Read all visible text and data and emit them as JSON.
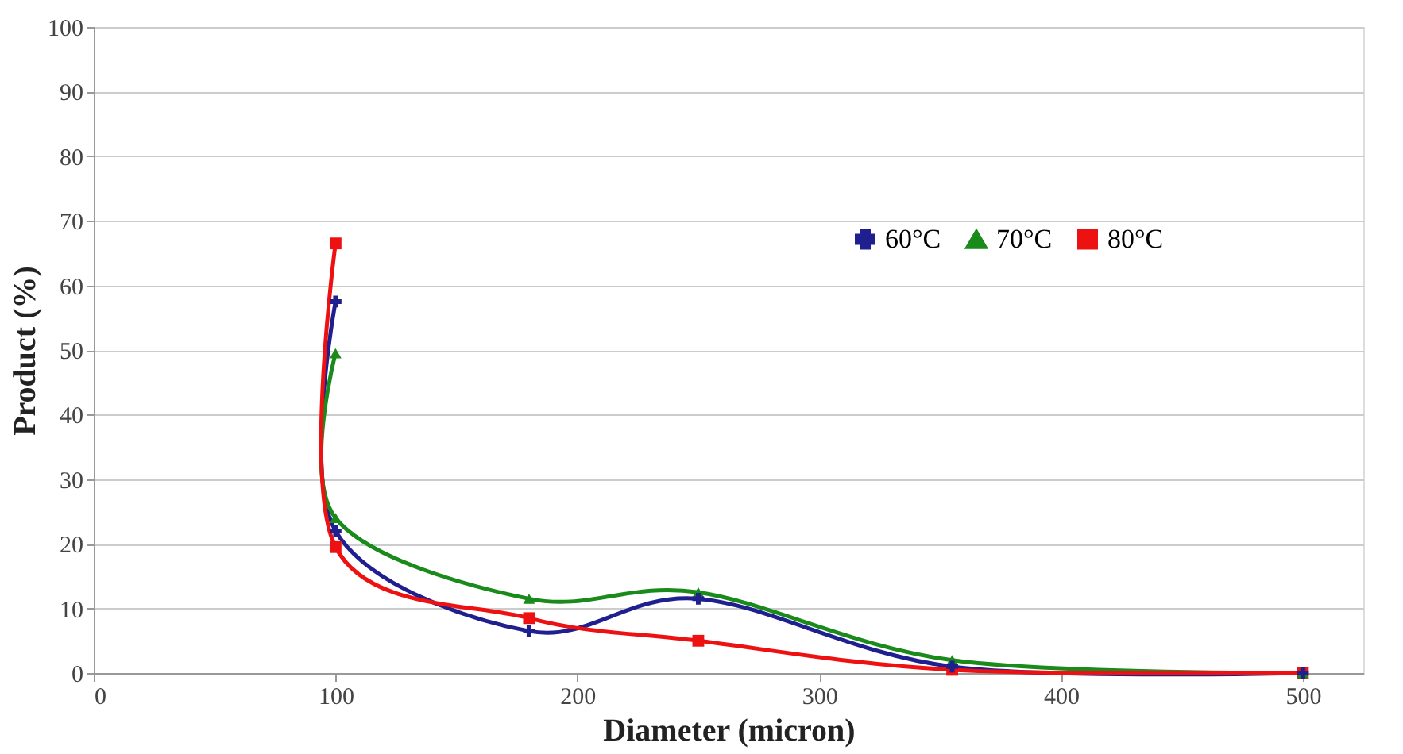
{
  "chart_data": {
    "type": "line",
    "xlabel": "Diameter (micron)",
    "ylabel": "Product (%)",
    "x": [
      100,
      100,
      180,
      250,
      355,
      500
    ],
    "series": [
      {
        "name": "60°C",
        "color": "#1f1f8f",
        "marker": "cross",
        "values": [
          57.5,
          22,
          6.5,
          11.5,
          1,
          0
        ]
      },
      {
        "name": "70°C",
        "color": "#1a8a1a",
        "marker": "triangle",
        "values": [
          49.5,
          24,
          11.5,
          12.5,
          2,
          0
        ]
      },
      {
        "name": "80°C",
        "color": "#ee1111",
        "marker": "square",
        "values": [
          66.5,
          19.5,
          8.5,
          5,
          0.5,
          0
        ]
      }
    ],
    "xlim": [
      0,
      525
    ],
    "xticks": [
      0,
      100,
      200,
      300,
      400,
      500
    ],
    "ylim": [
      0,
      100
    ],
    "yticks": [
      0,
      10,
      20,
      30,
      40,
      50,
      60,
      70,
      80,
      90,
      100
    ],
    "grid": "y",
    "legend": "top right",
    "line_style": "solid"
  }
}
